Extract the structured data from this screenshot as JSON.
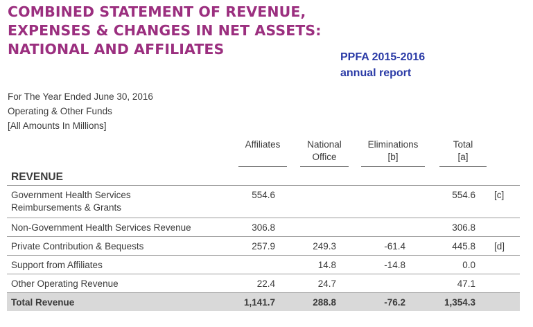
{
  "title": {
    "line1": "COMBINED STATEMENT OF REVENUE,",
    "line2": "EXPENSES & CHANGES IN NET ASSETS:",
    "line3": "NATIONAL AND AFFILIATES"
  },
  "report_note": {
    "line1": "PPFA 2015-2016",
    "line2": "annual report"
  },
  "meta": {
    "line1": "For The Year Ended June 30, 2016",
    "line2": "Operating & Other Funds",
    "line3": "[All Amounts In Millions]"
  },
  "columns": {
    "affiliates": "Affiliates",
    "national_1": "National",
    "national_2": "Office",
    "eliminations_1": "Eliminations",
    "eliminations_2": "[b]",
    "total_1": "Total",
    "total_2": "[a]"
  },
  "section": "REVENUE",
  "rows": [
    {
      "label_1": "Government Health Services",
      "label_2": "Reimbursements & Grants",
      "affiliates": "554.6",
      "national": "",
      "eliminations": "",
      "total": "554.6",
      "note": "[c]"
    },
    {
      "label_1": "Non-Government Health Services Revenue",
      "affiliates": "306.8",
      "national": "",
      "eliminations": "",
      "total": "306.8",
      "note": ""
    },
    {
      "label_1": "Private Contribution & Bequests",
      "affiliates": "257.9",
      "national": "249.3",
      "eliminations": "-61.4",
      "total": "445.8",
      "note": "[d]"
    },
    {
      "label_1": "Support from Affiliates",
      "affiliates": "",
      "national": "14.8",
      "eliminations": "-14.8",
      "total": "0.0",
      "note": ""
    },
    {
      "label_1": "Other Operating Revenue",
      "affiliates": "22.4",
      "national": "24.7",
      "eliminations": "",
      "total": "47.1",
      "note": ""
    }
  ],
  "total_row": {
    "label": "Total Revenue",
    "affiliates": "1,141.7",
    "national": "288.8",
    "eliminations": "-76.2",
    "total": "1,354.3"
  }
}
